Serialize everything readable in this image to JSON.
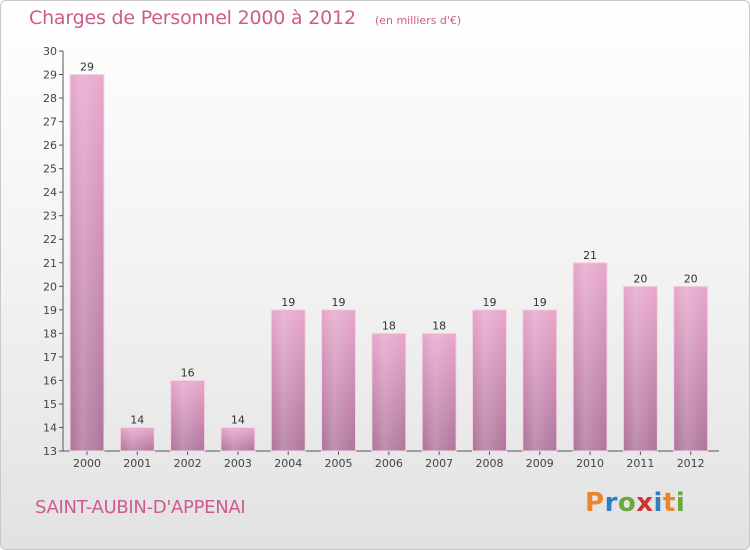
{
  "header": {
    "title": "Charges de Personnel 2000 à 2012",
    "subtitle": "(en milliers d'€)"
  },
  "footer": {
    "commune": "SAINT-AUBIN-D'APPENAI",
    "logo": "Proxiti",
    "logo_colors": [
      "#e8872a",
      "#2e7fc1",
      "#6aa83a",
      "#d0342c",
      "#2e7fc1",
      "#e8872a",
      "#6aa83a"
    ]
  },
  "colors": {
    "bar_top": "#e8a8cc",
    "bar_bottom": "#b0769c",
    "title": "#d05a8e"
  },
  "chart_data": {
    "type": "bar",
    "title": "Charges de Personnel 2000 à 2012",
    "subtitle": "(en milliers d'€)",
    "categories": [
      "2000",
      "2001",
      "2002",
      "2003",
      "2004",
      "2005",
      "2006",
      "2007",
      "2008",
      "2009",
      "2010",
      "2011",
      "2012"
    ],
    "values": [
      29,
      14,
      16,
      14,
      19,
      19,
      18,
      18,
      19,
      19,
      21,
      20,
      20
    ],
    "xlabel": "",
    "ylabel": "",
    "ylim": [
      13,
      30
    ],
    "yticks": [
      13,
      14,
      15,
      16,
      17,
      18,
      19,
      20,
      21,
      22,
      23,
      24,
      25,
      26,
      27,
      28,
      29,
      30
    ],
    "grid": false,
    "data_labels": true
  }
}
